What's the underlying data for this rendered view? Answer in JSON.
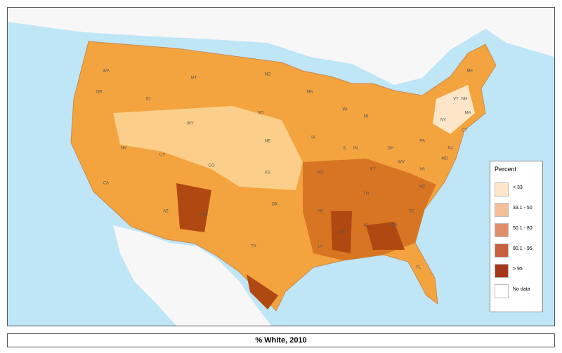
{
  "map": {
    "caption": "% White, 2010",
    "legend": {
      "title": "Percent",
      "items": [
        {
          "label": "< 33",
          "color": "#fde6c8"
        },
        {
          "label": "33.1 - 50",
          "color": "#f3c09a"
        },
        {
          "label": "50.1 - 80",
          "color": "#e08e6a"
        },
        {
          "label": "80.1 - 95",
          "color": "#c8603e"
        },
        {
          "label": "> 95",
          "color": "#a5381a"
        },
        {
          "label": "No data",
          "color": "#ffffff"
        }
      ]
    },
    "state_labels": [
      "WA",
      "OR",
      "ID",
      "MT",
      "ND",
      "WY",
      "SD",
      "NE",
      "NV",
      "UT",
      "CO",
      "KS",
      "CA",
      "AZ",
      "NM",
      "OK",
      "TX",
      "MN",
      "WI",
      "IA",
      "MO",
      "IL",
      "AR",
      "LA",
      "MS",
      "AL",
      "GA",
      "FL",
      "SC",
      "NC",
      "TN",
      "KY",
      "IN",
      "OH",
      "MI",
      "PA",
      "NY",
      "VA",
      "WV",
      "ME",
      "VT",
      "NH",
      "MA",
      "CT",
      "NJ",
      "MD"
    ]
  }
}
